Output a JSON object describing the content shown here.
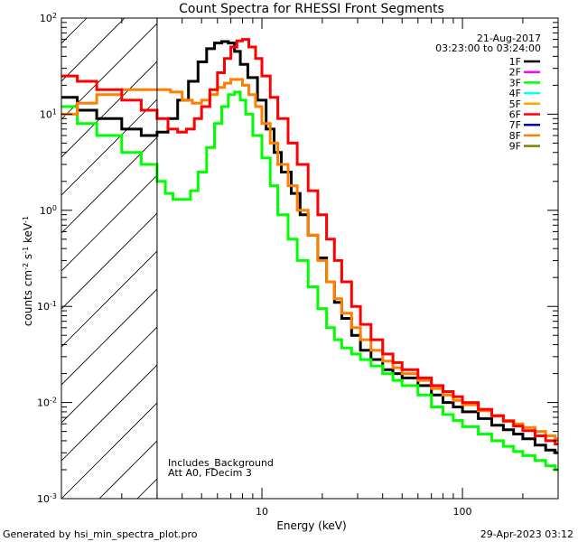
{
  "chart_data": {
    "type": "line",
    "title": "Count Spectra for RHESSI Front Segments",
    "xlabel": "Energy (keV)",
    "ylabel": "counts cm^-2 s^-1 keV^-1",
    "xscale": "log",
    "yscale": "log",
    "xlim": [
      1,
      300
    ],
    "ylim": [
      0.001,
      100
    ],
    "xticks": [
      {
        "value": 10,
        "label": "10"
      },
      {
        "value": 100,
        "label": "100"
      }
    ],
    "yticks": [
      {
        "value": 0.001,
        "base": "10",
        "exp": "-3"
      },
      {
        "value": 0.01,
        "base": "10",
        "exp": "-2"
      },
      {
        "value": 0.1,
        "base": "10",
        "exp": "-1"
      },
      {
        "value": 1,
        "base": "10",
        "exp": "0"
      },
      {
        "value": 10,
        "base": "10",
        "exp": "1"
      },
      {
        "value": 100,
        "base": "10",
        "exp": "2"
      }
    ],
    "shaded_region": {
      "from": 1,
      "to": 3
    },
    "date": "21-Aug-2017",
    "time_range": "03:23:00 to 03:24:00",
    "legend": [
      {
        "label": "1F",
        "color": "#000000"
      },
      {
        "label": "2F",
        "color": "#ff00ff"
      },
      {
        "label": "3F",
        "color": "#00ff00"
      },
      {
        "label": "4F",
        "color": "#00ffff"
      },
      {
        "label": "5F",
        "color": "#ffa500"
      },
      {
        "label": "6F",
        "color": "#ff0000"
      },
      {
        "label": "7F",
        "color": "#0000cc"
      },
      {
        "label": "8F",
        "color": "#ff7f00"
      },
      {
        "label": "9F",
        "color": "#808000"
      }
    ],
    "annotations": [
      "Includes_Background",
      "Att A0, FDecim 3"
    ],
    "series": [
      {
        "name": "1F",
        "color": "#000000",
        "x": [
          1.0,
          1.2,
          1.5,
          2.0,
          2.5,
          3.0,
          3.4,
          3.8,
          4.3,
          4.8,
          5.3,
          5.8,
          6.3,
          6.8,
          7.3,
          7.8,
          8.5,
          9.5,
          10.5,
          11.5,
          12.5,
          14,
          15.5,
          17,
          19,
          21,
          23,
          25,
          28,
          31,
          35,
          40,
          45,
          50,
          60,
          70,
          80,
          90,
          100,
          120,
          140,
          160,
          180,
          200,
          230,
          260,
          290
        ],
        "y": [
          15,
          11,
          9,
          7,
          6,
          6.5,
          9,
          14,
          22,
          35,
          48,
          55,
          57,
          55,
          45,
          33,
          24,
          14,
          7,
          4,
          2.5,
          1.5,
          0.9,
          0.55,
          0.32,
          0.18,
          0.11,
          0.075,
          0.05,
          0.035,
          0.028,
          0.022,
          0.02,
          0.018,
          0.015,
          0.012,
          0.01,
          0.009,
          0.008,
          0.0068,
          0.0058,
          0.0052,
          0.0047,
          0.0042,
          0.0036,
          0.0032,
          0.003
        ]
      },
      {
        "name": "3F",
        "color": "#00ff00",
        "x": [
          1.0,
          1.2,
          1.5,
          2.0,
          2.5,
          3.0,
          3.3,
          3.6,
          4.0,
          4.4,
          4.8,
          5.3,
          5.8,
          6.3,
          6.8,
          7.3,
          7.8,
          8.3,
          9.0,
          10,
          11,
          12,
          13.5,
          15,
          17,
          19,
          21,
          23,
          25,
          28,
          31,
          35,
          40,
          45,
          50,
          60,
          70,
          80,
          90,
          100,
          120,
          140,
          160,
          180,
          200,
          230,
          260,
          290
        ],
        "y": [
          12,
          8,
          6,
          4,
          3,
          2,
          1.5,
          1.3,
          1.3,
          1.6,
          2.5,
          4.5,
          8,
          12,
          16,
          17,
          14,
          10,
          6,
          3.5,
          1.8,
          0.9,
          0.5,
          0.3,
          0.16,
          0.095,
          0.06,
          0.045,
          0.037,
          0.032,
          0.028,
          0.024,
          0.02,
          0.017,
          0.015,
          0.012,
          0.009,
          0.0075,
          0.0065,
          0.0056,
          0.0047,
          0.004,
          0.0035,
          0.0031,
          0.0028,
          0.0025,
          0.0022,
          0.002
        ]
      },
      {
        "name": "8F",
        "color": "#ff7f00",
        "x": [
          1.0,
          1.2,
          1.5,
          2.0,
          2.5,
          3.0,
          3.5,
          4.0,
          4.5,
          5.0,
          5.5,
          6.0,
          6.5,
          7.0,
          7.5,
          8.0,
          8.6,
          9.3,
          10,
          11,
          12,
          13.5,
          15,
          17,
          19,
          21,
          23,
          25,
          28,
          31,
          35,
          40,
          45,
          50,
          60,
          70,
          80,
          90,
          100,
          120,
          140,
          160,
          180,
          200,
          230,
          260,
          290
        ],
        "y": [
          10,
          13,
          16,
          18,
          18,
          18,
          17,
          14,
          13,
          14,
          16,
          19,
          21,
          23,
          23,
          20,
          16,
          12,
          8,
          5,
          3,
          1.8,
          1.0,
          0.55,
          0.3,
          0.18,
          0.12,
          0.085,
          0.06,
          0.045,
          0.035,
          0.027,
          0.023,
          0.02,
          0.017,
          0.014,
          0.012,
          0.0105,
          0.0095,
          0.0082,
          0.0072,
          0.0065,
          0.006,
          0.0055,
          0.005,
          0.0045,
          0.0042
        ]
      },
      {
        "name": "6F",
        "color": "#ff0000",
        "x": [
          1.0,
          1.2,
          1.5,
          2.0,
          2.5,
          3.0,
          3.4,
          3.8,
          4.2,
          4.6,
          5.0,
          5.5,
          6.0,
          6.5,
          7.0,
          7.5,
          8.0,
          8.6,
          9.3,
          10,
          11,
          12,
          13.5,
          15,
          17,
          19,
          21,
          23,
          25,
          28,
          31,
          35,
          40,
          45,
          50,
          60,
          70,
          80,
          90,
          100,
          120,
          140,
          160,
          180,
          200,
          230,
          260,
          290
        ],
        "y": [
          25,
          22,
          18,
          14,
          11,
          9,
          7,
          6.5,
          7,
          9,
          12,
          18,
          27,
          38,
          50,
          58,
          60,
          50,
          38,
          25,
          15,
          9,
          5,
          3,
          1.6,
          0.9,
          0.5,
          0.3,
          0.18,
          0.1,
          0.065,
          0.045,
          0.032,
          0.026,
          0.022,
          0.018,
          0.015,
          0.013,
          0.0115,
          0.01,
          0.0085,
          0.0073,
          0.0064,
          0.0057,
          0.0051,
          0.0045,
          0.004,
          0.0037
        ]
      }
    ]
  },
  "footer": {
    "generated_by": "Generated by hsi_min_spectra_plot.pro",
    "timestamp": "29-Apr-2023 03:12"
  }
}
